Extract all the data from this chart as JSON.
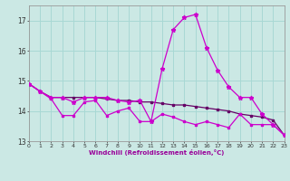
{
  "background_color": "#cbe8e4",
  "grid_color": "#a8d8d4",
  "line_color1": "#660066",
  "line_color2": "#cc00cc",
  "line_color3": "#cc00cc",
  "xlabel": "Windchill (Refroidissement éolien,°C)",
  "xlim": [
    0,
    23
  ],
  "ylim": [
    13.0,
    17.5
  ],
  "yticks": [
    13,
    14,
    15,
    16,
    17
  ],
  "xticks": [
    0,
    1,
    2,
    3,
    4,
    5,
    6,
    7,
    8,
    9,
    10,
    11,
    12,
    13,
    14,
    15,
    16,
    17,
    18,
    19,
    20,
    21,
    22,
    23
  ],
  "series1_x": [
    0,
    1,
    2,
    3,
    4,
    5,
    6,
    7,
    8,
    9,
    10,
    11,
    12,
    13,
    14,
    15,
    16,
    17,
    18,
    19,
    20,
    21,
    22,
    23
  ],
  "series1_y": [
    14.9,
    14.65,
    14.45,
    14.45,
    14.45,
    14.45,
    14.45,
    14.4,
    14.35,
    14.35,
    14.3,
    14.3,
    14.25,
    14.2,
    14.2,
    14.15,
    14.1,
    14.05,
    14.0,
    13.9,
    13.85,
    13.8,
    13.7,
    13.2
  ],
  "series2_x": [
    0,
    1,
    2,
    3,
    4,
    5,
    6,
    7,
    8,
    9,
    10,
    11,
    12,
    13,
    14,
    15,
    16,
    17,
    18,
    19,
    20,
    21,
    22,
    23
  ],
  "series2_y": [
    14.9,
    14.65,
    14.4,
    13.85,
    13.85,
    14.3,
    14.35,
    13.85,
    14.0,
    14.1,
    13.65,
    13.65,
    13.9,
    13.8,
    13.65,
    13.55,
    13.65,
    13.55,
    13.45,
    13.9,
    13.55,
    13.55,
    13.55,
    13.2
  ],
  "series3_x": [
    0,
    1,
    2,
    3,
    4,
    5,
    6,
    7,
    8,
    9,
    10,
    11,
    12,
    13,
    14,
    15,
    16,
    17,
    18,
    19,
    20,
    21,
    22,
    23
  ],
  "series3_y": [
    14.9,
    14.65,
    14.45,
    14.45,
    14.3,
    14.45,
    14.45,
    14.45,
    14.35,
    14.3,
    14.35,
    13.65,
    15.4,
    16.7,
    17.1,
    17.2,
    16.1,
    15.35,
    14.8,
    14.45,
    14.45,
    13.9,
    13.55,
    13.2
  ]
}
